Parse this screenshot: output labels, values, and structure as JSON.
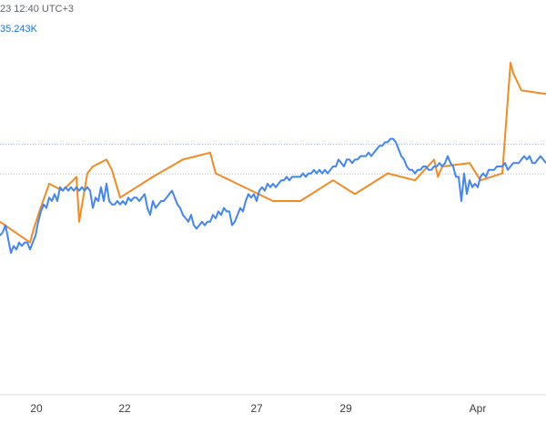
{
  "header": {
    "timestamp": "23 12:40 UTC+3",
    "value": "35.243K"
  },
  "colors": {
    "primary_series": "#4285f4",
    "secondary_series": "#f28b22",
    "reference_line": "#aab7f8",
    "axis": "#dadce0"
  },
  "chart_data": {
    "type": "line",
    "x_ticks": [
      "20",
      "22",
      "27",
      "29",
      "Apr"
    ],
    "x_domain": [
      0,
      100
    ],
    "y_domain": [
      0,
      100
    ],
    "reference_lines": [
      71.4,
      62.8
    ],
    "series": [
      {
        "color": "#4285f4",
        "x": [
          0,
          0.5,
          1.0,
          1.5,
          2.0,
          2.5,
          3.0,
          3.5,
          4.0,
          4.5,
          5.0,
          5.5,
          6.0,
          6.5,
          7.0,
          7.5,
          8.0,
          8.5,
          9.0,
          9.5,
          10.0,
          10.5,
          11.0,
          11.5,
          12.0,
          12.5,
          13.0,
          13.5,
          14.0,
          14.5,
          15.0,
          15.5,
          16.0,
          16.5,
          17.0,
          17.5,
          18.0,
          18.5,
          19.0,
          19.5,
          20.0,
          20.5,
          21.0,
          21.5,
          22.0,
          22.5,
          23.0,
          23.5,
          24.0,
          24.5,
          25.0,
          25.5,
          26.0,
          26.5,
          27.0,
          27.5,
          28.0,
          28.5,
          29.0,
          29.5,
          30.0,
          30.5,
          31.0,
          31.5,
          32.0,
          32.5,
          33.0,
          33.5,
          34.0,
          34.5,
          35.0,
          35.5,
          36.0,
          36.5,
          37.0,
          37.5,
          38.0,
          38.5,
          39.0,
          39.5,
          40.0,
          40.5,
          41.0,
          41.5,
          42.0,
          42.5,
          43.0,
          43.5,
          44.0,
          44.5,
          45.0,
          45.5,
          46.0,
          46.5,
          47.0,
          47.5,
          48.0,
          48.5,
          49.0,
          49.5,
          50.0,
          50.5,
          51.0,
          51.5,
          52.0,
          52.5,
          53.0,
          53.5,
          54.0,
          54.5,
          55.0,
          55.5,
          56.0,
          56.5,
          57.0,
          57.5,
          58.0,
          58.5,
          59.0,
          59.5,
          60.0,
          60.5,
          61.0,
          61.5,
          62.0,
          62.5,
          63.0,
          63.5,
          64.0,
          64.5,
          65.0,
          65.5,
          66.0,
          66.5,
          67.0,
          67.5,
          68.0,
          68.5,
          69.0,
          69.5,
          70.0,
          70.5,
          71.0,
          71.5,
          72.0,
          72.5,
          73.0,
          73.5,
          74.0,
          74.5,
          75.0,
          75.5,
          76.0,
          76.5,
          77.0,
          77.5,
          78.0,
          78.5,
          79.0,
          79.5,
          80.0,
          80.5,
          81.0,
          81.5,
          82.0,
          82.5,
          83.0,
          83.5,
          84.0,
          84.5,
          85.0,
          85.5,
          86.0,
          86.5,
          87.0,
          87.5,
          88.0,
          88.5,
          89.0,
          89.5,
          90.0,
          90.5,
          91.0,
          91.5,
          92.0,
          92.5,
          93.0,
          93.5,
          94.0,
          94.5,
          95.0,
          95.5,
          96.0,
          96.5,
          97.0,
          97.5,
          98.0,
          98.5,
          99.0,
          99.5,
          100.0
        ],
        "y": [
          45,
          46,
          48,
          44,
          40,
          42,
          41,
          43,
          42,
          43,
          43,
          41,
          43,
          45,
          49,
          52,
          54,
          53,
          56,
          55,
          57,
          55,
          59,
          58,
          59,
          58,
          59,
          58,
          59,
          58,
          59,
          58,
          59,
          58,
          53,
          56,
          55,
          59,
          55,
          60,
          55,
          54,
          54,
          55,
          54,
          55,
          54,
          56,
          55,
          56,
          56,
          55,
          56,
          57,
          53,
          51,
          55,
          53,
          54,
          55,
          55,
          56,
          57,
          58,
          56,
          54,
          53,
          51,
          50,
          49,
          51,
          48,
          47,
          48,
          49,
          48,
          49,
          49,
          51,
          50,
          52,
          51,
          53,
          52,
          52,
          48,
          49,
          51,
          53,
          52,
          55,
          57,
          56,
          57,
          55,
          58,
          59,
          58,
          60,
          59,
          60,
          59,
          60,
          61,
          61,
          62,
          61,
          62,
          62,
          62,
          62,
          63,
          62,
          63,
          63,
          64,
          63,
          64,
          63,
          64,
          63,
          64,
          65,
          65,
          67,
          66,
          65,
          67,
          67,
          66,
          67,
          67,
          68,
          68,
          68,
          69,
          68,
          69,
          70,
          71,
          71,
          72,
          72,
          73,
          73,
          72,
          70,
          68,
          67,
          65,
          64,
          64,
          63,
          64,
          64,
          65,
          65,
          64,
          64,
          65,
          65,
          66,
          65,
          66,
          68,
          66,
          65,
          62,
          62,
          55,
          63,
          57,
          61,
          59,
          60,
          59,
          62,
          63,
          62,
          64,
          64,
          64,
          65,
          65,
          65,
          66,
          64,
          65,
          66,
          66,
          66,
          67,
          68,
          67,
          68,
          66,
          66,
          67,
          68,
          67,
          66
        ]
      },
      {
        "color": "#f28b22",
        "x": [
          0,
          5.5,
          6.0,
          6.2,
          7.0,
          9.0,
          11.5,
          14.0,
          14.5,
          16.0,
          17.0,
          19.5,
          20.5,
          22.0,
          28.0,
          33.5,
          38.5,
          39.5,
          50.0,
          55.0,
          61.0,
          65.0,
          71.0,
          76.0,
          79.5,
          80.2,
          81.0,
          86.0,
          88.0,
          92.0,
          93.5,
          94.0,
          95.5,
          100.0
        ],
        "y": [
          49,
          43,
          46,
          47,
          51,
          60,
          58,
          62,
          49,
          63,
          65,
          67,
          64,
          56,
          62,
          67,
          69,
          63,
          55,
          55,
          61,
          57,
          63,
          61,
          67,
          62,
          65,
          66,
          61,
          63,
          95,
          92,
          87,
          86
        ]
      }
    ]
  }
}
